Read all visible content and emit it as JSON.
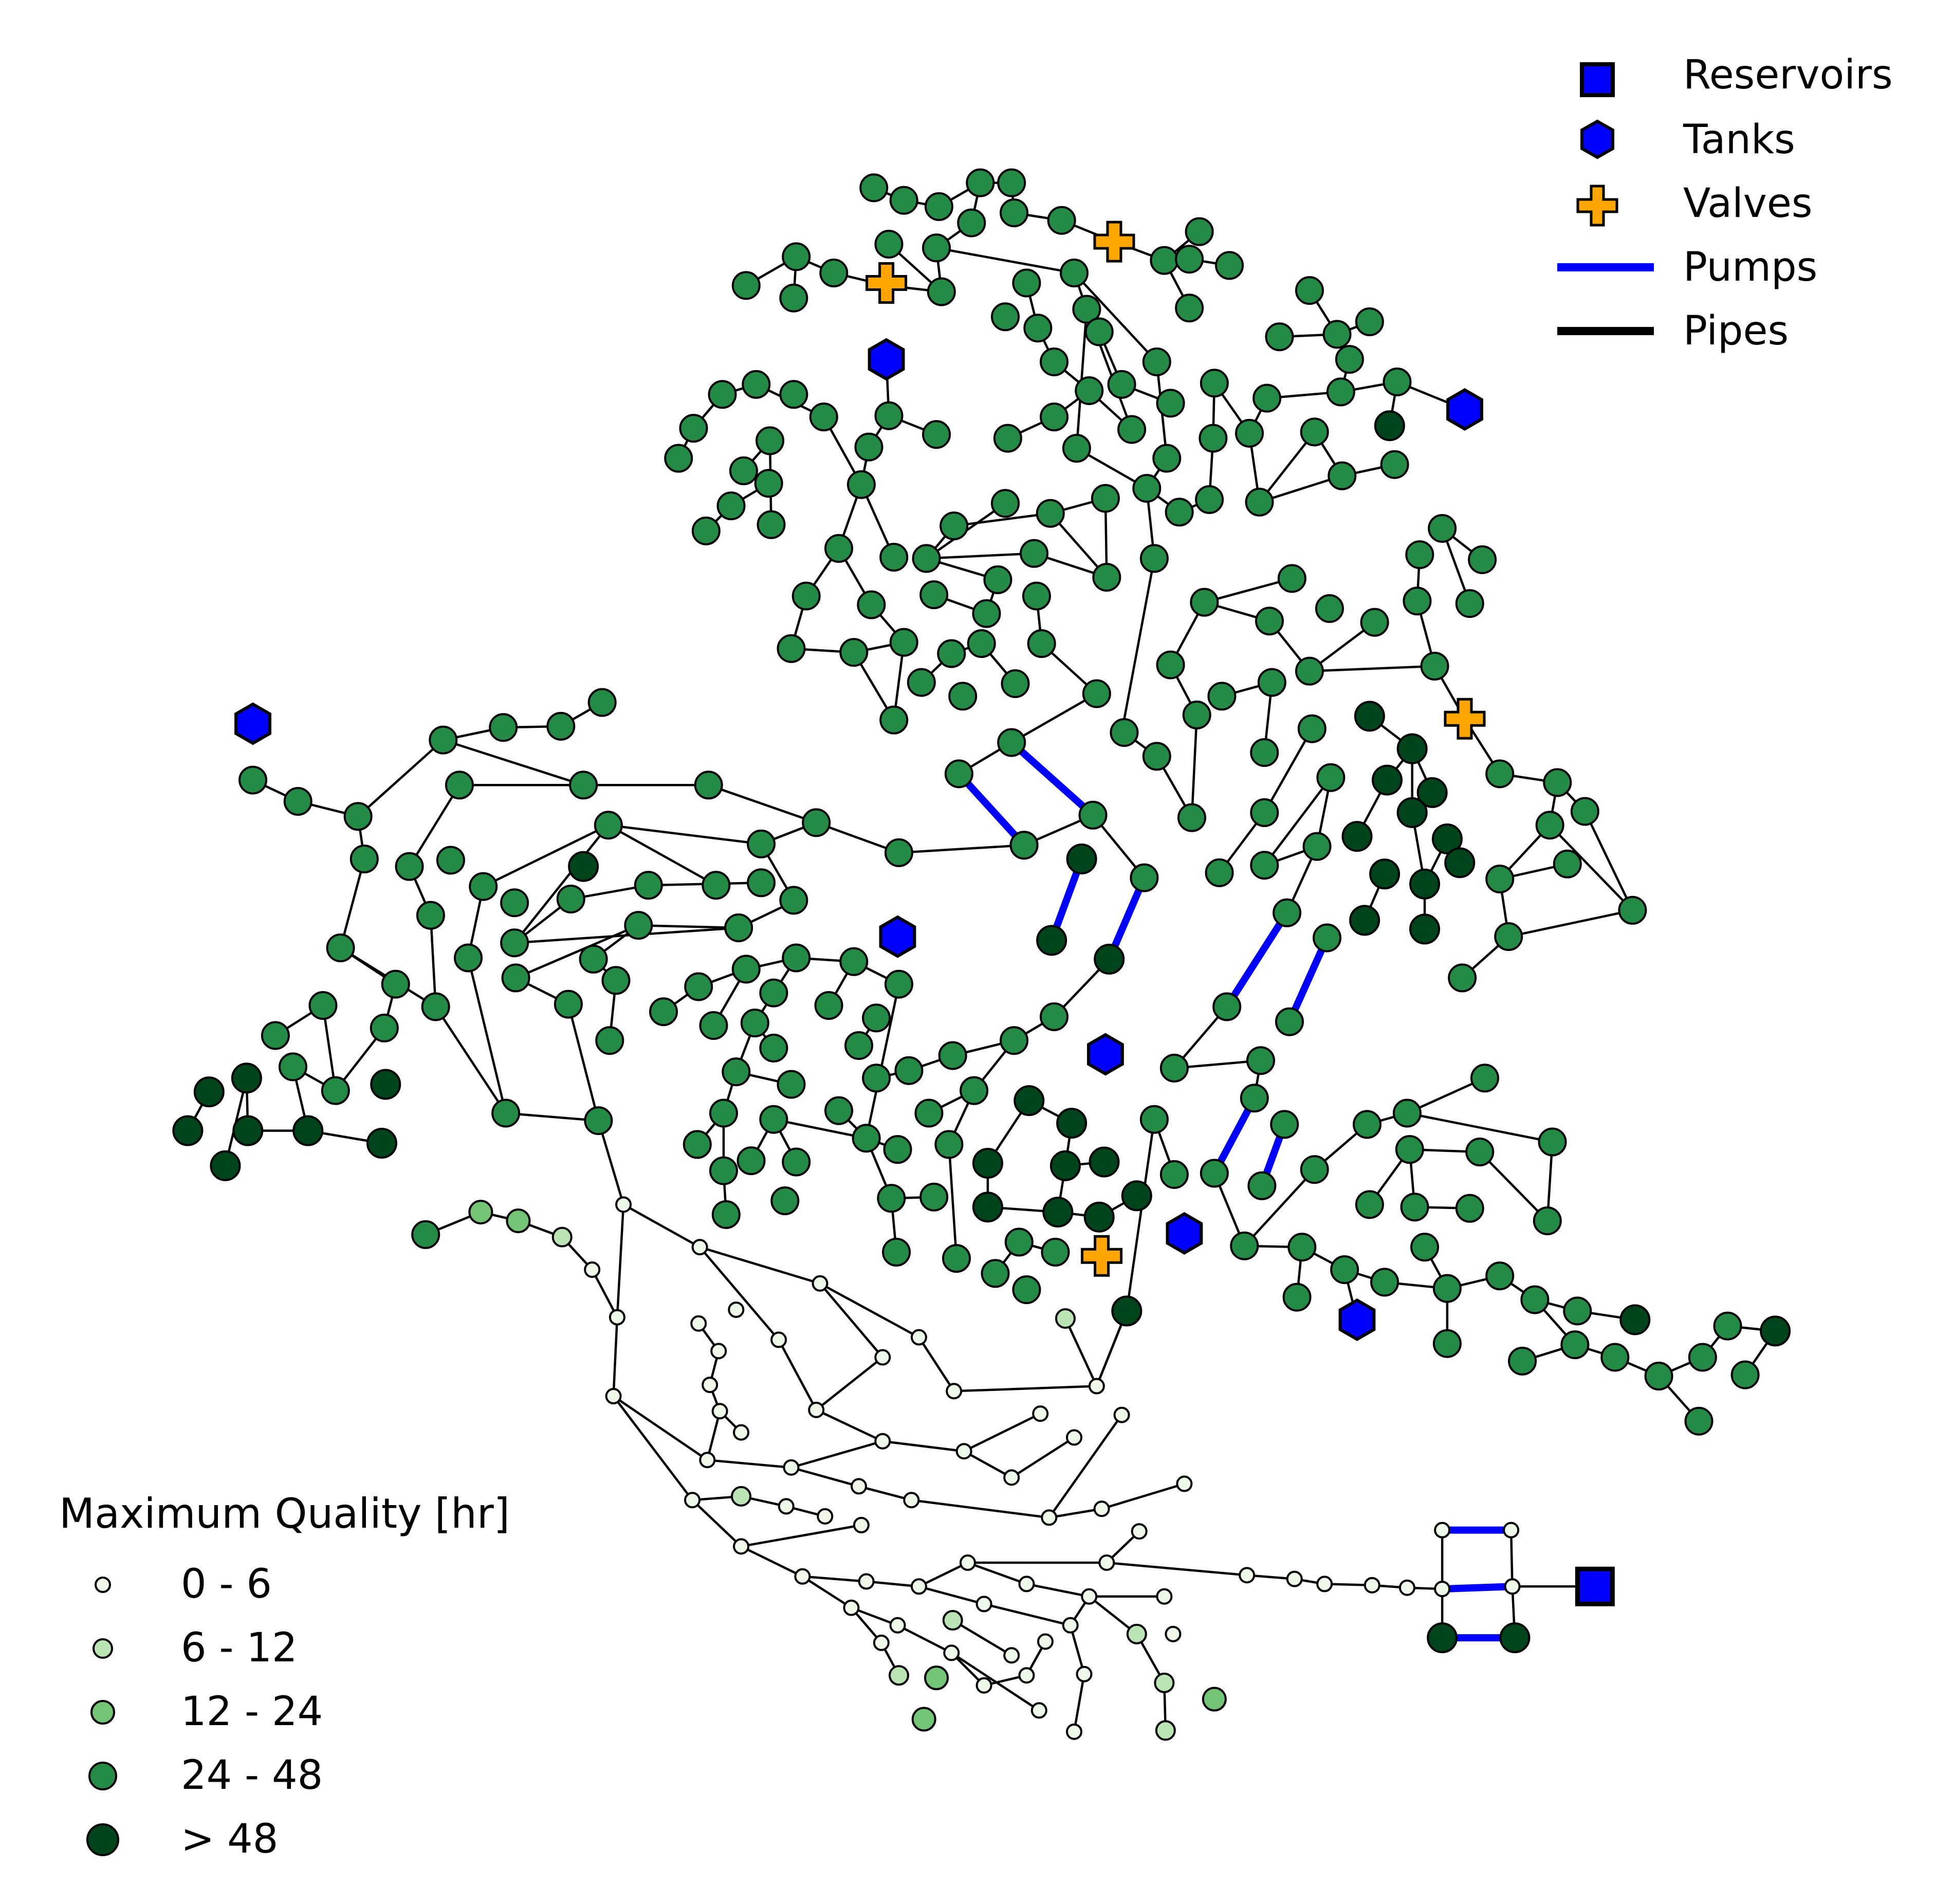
{
  "legend_network": {
    "items": [
      {
        "label": "Reservoirs",
        "icon": "reservoir-square-icon",
        "color": "#0000ff"
      },
      {
        "label": "Tanks",
        "icon": "tank-hexagon-icon",
        "color": "#0000ff"
      },
      {
        "label": "Valves",
        "icon": "valve-plus-icon",
        "color": "#ffa500"
      },
      {
        "label": "Pumps",
        "icon": "pump-line-icon",
        "color": "#0000ff"
      },
      {
        "label": "Pipes",
        "icon": "pipe-line-icon",
        "color": "#000000"
      }
    ]
  },
  "legend_quality": {
    "title": "Maximum Quality [hr]",
    "classes": [
      {
        "label": "0 - 6",
        "color": "#edf8e9"
      },
      {
        "label": "6 - 12",
        "color": "#bae4b3"
      },
      {
        "label": "12 - 24",
        "color": "#74c476"
      },
      {
        "label": "24 - 48",
        "color": "#238b45"
      },
      {
        "label": "> 48",
        "color": "#00441b"
      }
    ]
  },
  "colors": {
    "node_outline": "#000000",
    "pipe": "#000000",
    "pump": "#0000ff",
    "tank": "#0000ff",
    "reservoir": "#0000ff",
    "valve": "#ffa500"
  }
}
